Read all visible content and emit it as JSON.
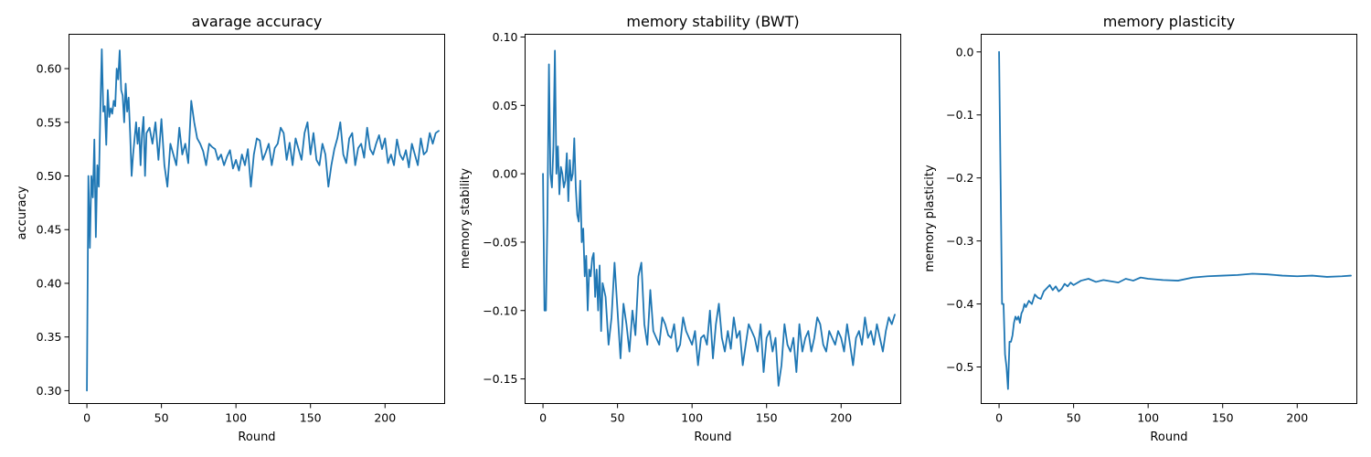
{
  "chart_data": [
    {
      "type": "line",
      "title": "avarage accuracy",
      "xlabel": "Round",
      "ylabel": "accuracy",
      "xlim": [
        -12,
        240
      ],
      "ylim": [
        0.288,
        0.632
      ],
      "xticks": [
        0,
        50,
        100,
        150,
        200
      ],
      "xtick_labels": [
        "0",
        "50",
        "100",
        "150",
        "200"
      ],
      "yticks": [
        0.3,
        0.35,
        0.4,
        0.45,
        0.5,
        0.55,
        0.6
      ],
      "ytick_labels": [
        "0.30",
        "0.35",
        "0.40",
        "0.45",
        "0.50",
        "0.55",
        "0.60"
      ],
      "grid": false,
      "color": "#1f77b4",
      "series": [
        {
          "x": [
            0,
            1,
            2,
            3,
            4,
            5,
            6,
            7,
            8,
            9,
            10,
            11,
            12,
            13,
            14,
            15,
            16,
            17,
            18,
            19,
            20,
            21,
            22,
            23,
            24,
            25,
            26,
            27,
            28,
            29,
            30,
            31,
            32,
            33,
            34,
            35,
            36,
            37,
            38,
            39,
            40,
            42,
            44,
            46,
            48,
            50,
            52,
            54,
            56,
            58,
            60,
            62,
            64,
            66,
            68,
            70,
            72,
            74,
            76,
            78,
            80,
            82,
            84,
            86,
            88,
            90,
            92,
            94,
            96,
            98,
            100,
            102,
            104,
            106,
            108,
            110,
            112,
            114,
            116,
            118,
            120,
            122,
            124,
            126,
            128,
            130,
            132,
            134,
            136,
            138,
            140,
            142,
            144,
            146,
            148,
            150,
            152,
            154,
            156,
            158,
            160,
            162,
            164,
            166,
            168,
            170,
            172,
            174,
            176,
            178,
            180,
            182,
            184,
            186,
            188,
            190,
            192,
            194,
            196,
            198,
            200,
            202,
            204,
            206,
            208,
            210,
            212,
            214,
            216,
            218,
            220,
            222,
            224,
            226,
            228,
            230,
            232,
            234,
            236
          ],
          "y": [
            0.3,
            0.5,
            0.433,
            0.5,
            0.48,
            0.534,
            0.443,
            0.51,
            0.49,
            0.56,
            0.618,
            0.56,
            0.565,
            0.529,
            0.58,
            0.555,
            0.563,
            0.558,
            0.57,
            0.565,
            0.6,
            0.59,
            0.617,
            0.58,
            0.575,
            0.55,
            0.586,
            0.56,
            0.573,
            0.54,
            0.5,
            0.52,
            0.535,
            0.55,
            0.53,
            0.545,
            0.51,
            0.54,
            0.555,
            0.5,
            0.54,
            0.545,
            0.53,
            0.55,
            0.515,
            0.553,
            0.51,
            0.49,
            0.53,
            0.52,
            0.51,
            0.545,
            0.52,
            0.53,
            0.512,
            0.57,
            0.55,
            0.535,
            0.53,
            0.523,
            0.51,
            0.53,
            0.527,
            0.525,
            0.515,
            0.52,
            0.51,
            0.518,
            0.524,
            0.507,
            0.515,
            0.505,
            0.52,
            0.51,
            0.525,
            0.49,
            0.52,
            0.535,
            0.533,
            0.515,
            0.522,
            0.53,
            0.51,
            0.526,
            0.53,
            0.545,
            0.54,
            0.515,
            0.531,
            0.51,
            0.535,
            0.525,
            0.515,
            0.54,
            0.55,
            0.52,
            0.54,
            0.515,
            0.51,
            0.53,
            0.52,
            0.49,
            0.51,
            0.525,
            0.535,
            0.55,
            0.52,
            0.512,
            0.535,
            0.54,
            0.51,
            0.526,
            0.53,
            0.517,
            0.545,
            0.525,
            0.52,
            0.53,
            0.538,
            0.525,
            0.535,
            0.512,
            0.52,
            0.51,
            0.534,
            0.52,
            0.515,
            0.524,
            0.508,
            0.53,
            0.52,
            0.51,
            0.535,
            0.52,
            0.523,
            0.54,
            0.53,
            0.54,
            0.542
          ]
        }
      ]
    },
    {
      "type": "line",
      "title": "memory stability (BWT)",
      "xlabel": "Round",
      "ylabel": "memory stability",
      "xlim": [
        -12,
        240
      ],
      "ylim": [
        -0.168,
        0.102
      ],
      "xticks": [
        0,
        50,
        100,
        150,
        200
      ],
      "xtick_labels": [
        "0",
        "50",
        "100",
        "150",
        "200"
      ],
      "yticks": [
        -0.15,
        -0.1,
        -0.05,
        0.0,
        0.05,
        0.1
      ],
      "ytick_labels": [
        "−0.15",
        "−0.10",
        "−0.05",
        "0.00",
        "0.05",
        "0.10"
      ],
      "grid": false,
      "color": "#1f77b4",
      "series": [
        {
          "x": [
            0,
            1,
            2,
            3,
            4,
            5,
            6,
            7,
            8,
            9,
            10,
            11,
            12,
            13,
            14,
            15,
            16,
            17,
            18,
            19,
            20,
            21,
            22,
            23,
            24,
            25,
            26,
            27,
            28,
            29,
            30,
            31,
            32,
            33,
            34,
            35,
            36,
            37,
            38,
            39,
            40,
            42,
            44,
            46,
            48,
            50,
            52,
            54,
            56,
            58,
            60,
            62,
            64,
            66,
            68,
            70,
            72,
            74,
            76,
            78,
            80,
            82,
            84,
            86,
            88,
            90,
            92,
            94,
            96,
            98,
            100,
            102,
            104,
            106,
            108,
            110,
            112,
            114,
            116,
            118,
            120,
            122,
            124,
            126,
            128,
            130,
            132,
            134,
            136,
            138,
            140,
            142,
            144,
            146,
            148,
            150,
            152,
            154,
            156,
            158,
            160,
            162,
            164,
            166,
            168,
            170,
            172,
            174,
            176,
            178,
            180,
            182,
            184,
            186,
            188,
            190,
            192,
            194,
            196,
            198,
            200,
            202,
            204,
            206,
            208,
            210,
            212,
            214,
            216,
            218,
            220,
            222,
            224,
            226,
            228,
            230,
            232,
            234,
            236
          ],
          "y": [
            0.0,
            -0.1,
            -0.1,
            -0.03,
            0.08,
            0.0,
            -0.01,
            0.02,
            0.09,
            0.0,
            0.02,
            -0.015,
            0.005,
            0.0,
            -0.01,
            -0.005,
            0.015,
            -0.02,
            0.01,
            -0.005,
            0.0,
            0.026,
            -0.01,
            -0.03,
            -0.035,
            -0.005,
            -0.05,
            -0.04,
            -0.075,
            -0.06,
            -0.1,
            -0.07,
            -0.075,
            -0.062,
            -0.058,
            -0.09,
            -0.07,
            -0.1,
            -0.067,
            -0.115,
            -0.08,
            -0.09,
            -0.125,
            -0.105,
            -0.065,
            -0.1,
            -0.135,
            -0.095,
            -0.11,
            -0.13,
            -0.1,
            -0.118,
            -0.075,
            -0.065,
            -0.11,
            -0.125,
            -0.085,
            -0.115,
            -0.12,
            -0.125,
            -0.105,
            -0.11,
            -0.118,
            -0.12,
            -0.11,
            -0.13,
            -0.125,
            -0.105,
            -0.115,
            -0.12,
            -0.125,
            -0.115,
            -0.14,
            -0.12,
            -0.118,
            -0.125,
            -0.1,
            -0.135,
            -0.11,
            -0.095,
            -0.12,
            -0.13,
            -0.115,
            -0.128,
            -0.105,
            -0.12,
            -0.115,
            -0.14,
            -0.125,
            -0.11,
            -0.115,
            -0.12,
            -0.13,
            -0.11,
            -0.145,
            -0.12,
            -0.115,
            -0.13,
            -0.12,
            -0.155,
            -0.14,
            -0.11,
            -0.125,
            -0.13,
            -0.12,
            -0.145,
            -0.11,
            -0.13,
            -0.12,
            -0.115,
            -0.13,
            -0.12,
            -0.105,
            -0.11,
            -0.125,
            -0.13,
            -0.115,
            -0.12,
            -0.125,
            -0.115,
            -0.12,
            -0.13,
            -0.11,
            -0.125,
            -0.14,
            -0.12,
            -0.115,
            -0.125,
            -0.105,
            -0.12,
            -0.115,
            -0.125,
            -0.11,
            -0.12,
            -0.13,
            -0.115,
            -0.105,
            -0.11,
            -0.103
          ]
        }
      ]
    },
    {
      "type": "line",
      "title": "memory plasticity",
      "xlabel": "Round",
      "ylabel": "memory plasticity",
      "xlim": [
        -12,
        240
      ],
      "ylim": [
        -0.558,
        0.028
      ],
      "xticks": [
        0,
        50,
        100,
        150,
        200
      ],
      "xtick_labels": [
        "0",
        "50",
        "100",
        "150",
        "200"
      ],
      "yticks": [
        -0.5,
        -0.4,
        -0.3,
        -0.2,
        -0.1,
        0.0
      ],
      "ytick_labels": [
        "−0.5",
        "−0.4",
        "−0.3",
        "−0.2",
        "−0.1",
        "0.0"
      ],
      "grid": false,
      "color": "#1f77b4",
      "series": [
        {
          "x": [
            0,
            1,
            2,
            3,
            4,
            5,
            6,
            7,
            8,
            9,
            10,
            11,
            12,
            13,
            14,
            15,
            16,
            17,
            18,
            19,
            20,
            22,
            24,
            26,
            28,
            30,
            32,
            34,
            36,
            38,
            40,
            42,
            44,
            46,
            48,
            50,
            55,
            60,
            65,
            70,
            75,
            80,
            85,
            90,
            95,
            100,
            110,
            120,
            130,
            140,
            150,
            160,
            170,
            180,
            190,
            200,
            210,
            220,
            230,
            236
          ],
          "y": [
            0.0,
            -0.2,
            -0.4,
            -0.4,
            -0.48,
            -0.5,
            -0.535,
            -0.46,
            -0.46,
            -0.45,
            -0.43,
            -0.42,
            -0.425,
            -0.42,
            -0.43,
            -0.415,
            -0.41,
            -0.4,
            -0.405,
            -0.4,
            -0.395,
            -0.4,
            -0.385,
            -0.39,
            -0.392,
            -0.38,
            -0.375,
            -0.37,
            -0.378,
            -0.372,
            -0.38,
            -0.376,
            -0.368,
            -0.372,
            -0.366,
            -0.37,
            -0.363,
            -0.36,
            -0.365,
            -0.362,
            -0.364,
            -0.366,
            -0.36,
            -0.363,
            -0.358,
            -0.36,
            -0.362,
            -0.363,
            -0.358,
            -0.356,
            -0.355,
            -0.354,
            -0.352,
            -0.353,
            -0.355,
            -0.356,
            -0.355,
            -0.357,
            -0.356,
            -0.355
          ]
        }
      ]
    }
  ]
}
